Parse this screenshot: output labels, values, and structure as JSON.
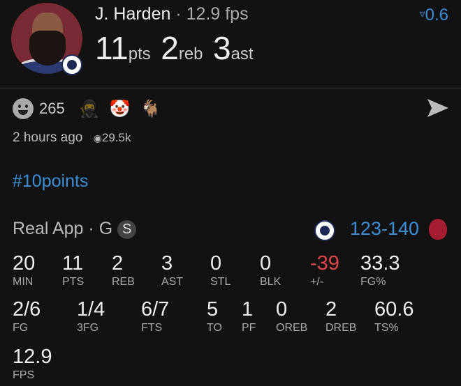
{
  "header": {
    "player": "J. Harden",
    "separator": "·",
    "fps": "12.9 fps",
    "trend_icon": "filter-down-icon",
    "trend_value": "0.6",
    "stats": [
      {
        "value": "11",
        "unit": "pts"
      },
      {
        "value": "2",
        "unit": "reb"
      },
      {
        "value": "3",
        "unit": "ast"
      }
    ]
  },
  "reactions": {
    "count": "265",
    "emojis": [
      "🥷",
      "🤡",
      "🐐"
    ],
    "time": "2 hours ago",
    "views": "29.5k"
  },
  "hashtag": "#10points",
  "game": {
    "source": "Real App",
    "separator": "·",
    "position": "G",
    "badge": "S",
    "score": "123-140"
  },
  "box_row1": [
    {
      "value": "20",
      "label": "MIN"
    },
    {
      "value": "11",
      "label": "PTS"
    },
    {
      "value": "2",
      "label": "REB"
    },
    {
      "value": "3",
      "label": "AST"
    },
    {
      "value": "0",
      "label": "STL"
    },
    {
      "value": "0",
      "label": "BLK"
    },
    {
      "value": "-39",
      "label": "+/-"
    },
    {
      "value": "33.3",
      "label": "FG%"
    }
  ],
  "box_row2": [
    {
      "value": "2/6",
      "label": "FG"
    },
    {
      "value": "1/4",
      "label": "3FG"
    },
    {
      "value": "6/7",
      "label": "FTS"
    },
    {
      "value": "5",
      "label": "TO"
    },
    {
      "value": "1",
      "label": "PF"
    },
    {
      "value": "0",
      "label": "OREB"
    },
    {
      "value": "2",
      "label": "DREB"
    },
    {
      "value": "60.6",
      "label": "TS%"
    }
  ],
  "box_row3": [
    {
      "value": "12.9",
      "label": "FPS"
    }
  ],
  "colors": {
    "accent": "#3b8fd8",
    "negative": "#e0454a",
    "background": "#121212"
  }
}
